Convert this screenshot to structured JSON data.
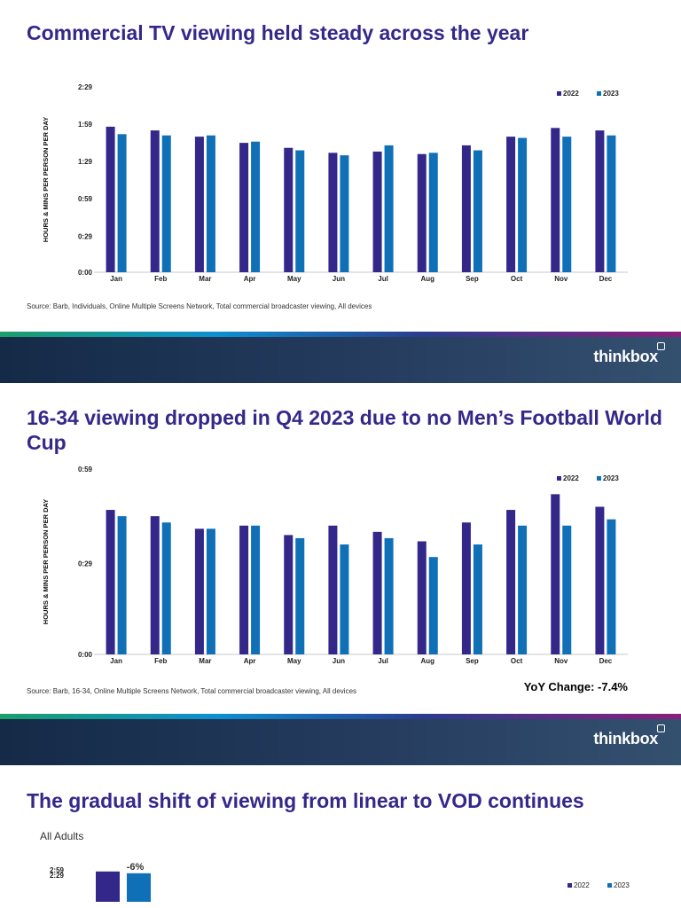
{
  "slides": [
    {
      "title": "Commercial TV viewing held steady across the year",
      "source": "Source: Barb, Individuals, Online Multiple Screens Network, Total commercial broadcaster viewing, All devices"
    },
    {
      "title": "16-34 viewing dropped in Q4 2023 due to no Men’s Football World Cup",
      "source": "Source: Barb, 16-34, Online Multiple Screens Network, Total commercial broadcaster viewing, All devices",
      "yoy": "YoY Change: -7.4%"
    },
    {
      "title": "The gradual shift of viewing from linear to VOD continues",
      "subtitle": "All Adults"
    }
  ],
  "brand": {
    "logo_text": "thinkbox"
  },
  "colors": {
    "title": "#35288b",
    "series_2022": "#33288a",
    "series_2023": "#0f70b7"
  },
  "chart_data": [
    {
      "type": "bar",
      "ylabel": "HOURS & MINS PER PERSON PER DAY",
      "xlabel": "",
      "ylim": [
        0,
        149
      ],
      "yticks": [
        0,
        29,
        59,
        89,
        119,
        149
      ],
      "ytick_labels": [
        "0:00",
        "0:29",
        "0:59",
        "1:29",
        "1:59",
        "2:29"
      ],
      "categories": [
        "Jan",
        "Feb",
        "Mar",
        "Apr",
        "May",
        "Jun",
        "Jul",
        "Aug",
        "Sep",
        "Oct",
        "Nov",
        "Dec"
      ],
      "series": [
        {
          "name": "2022",
          "values": [
            117,
            114,
            109,
            104,
            100,
            96,
            97,
            95,
            102,
            109,
            116,
            114
          ]
        },
        {
          "name": "2023",
          "values": [
            111,
            110,
            110,
            105,
            98,
            94,
            102,
            96,
            98,
            108,
            109,
            110
          ]
        }
      ],
      "legend": "top-right"
    },
    {
      "type": "bar",
      "ylabel": "HOURS & MINS PER PERSON PER DAY",
      "xlabel": "",
      "ylim": [
        0,
        59
      ],
      "yticks": [
        0,
        29,
        59
      ],
      "ytick_labels": [
        "0:00",
        "0:29",
        "0:59"
      ],
      "categories": [
        "Jan",
        "Feb",
        "Mar",
        "Apr",
        "May",
        "Jun",
        "Jul",
        "Aug",
        "Sep",
        "Oct",
        "Nov",
        "Dec"
      ],
      "series": [
        {
          "name": "2022",
          "values": [
            46,
            44,
            40,
            41,
            38,
            41,
            39,
            36,
            42,
            46,
            51,
            47
          ]
        },
        {
          "name": "2023",
          "values": [
            44,
            42,
            40,
            41,
            37,
            35,
            37,
            31,
            35,
            41,
            41,
            43
          ]
        }
      ],
      "legend": "top-right"
    },
    {
      "type": "bar",
      "ylabel": "",
      "xlabel": "",
      "ylim": [
        0,
        179
      ],
      "yticks": [
        149,
        179
      ],
      "ytick_labels": [
        "2:29",
        "2:59"
      ],
      "categories": [
        ""
      ],
      "series": [
        {
          "name": "2022",
          "values": [
            170
          ]
        },
        {
          "name": "2023",
          "values": [
            160
          ]
        }
      ],
      "annotations": [
        "-6%"
      ],
      "legend": "top-right"
    }
  ]
}
